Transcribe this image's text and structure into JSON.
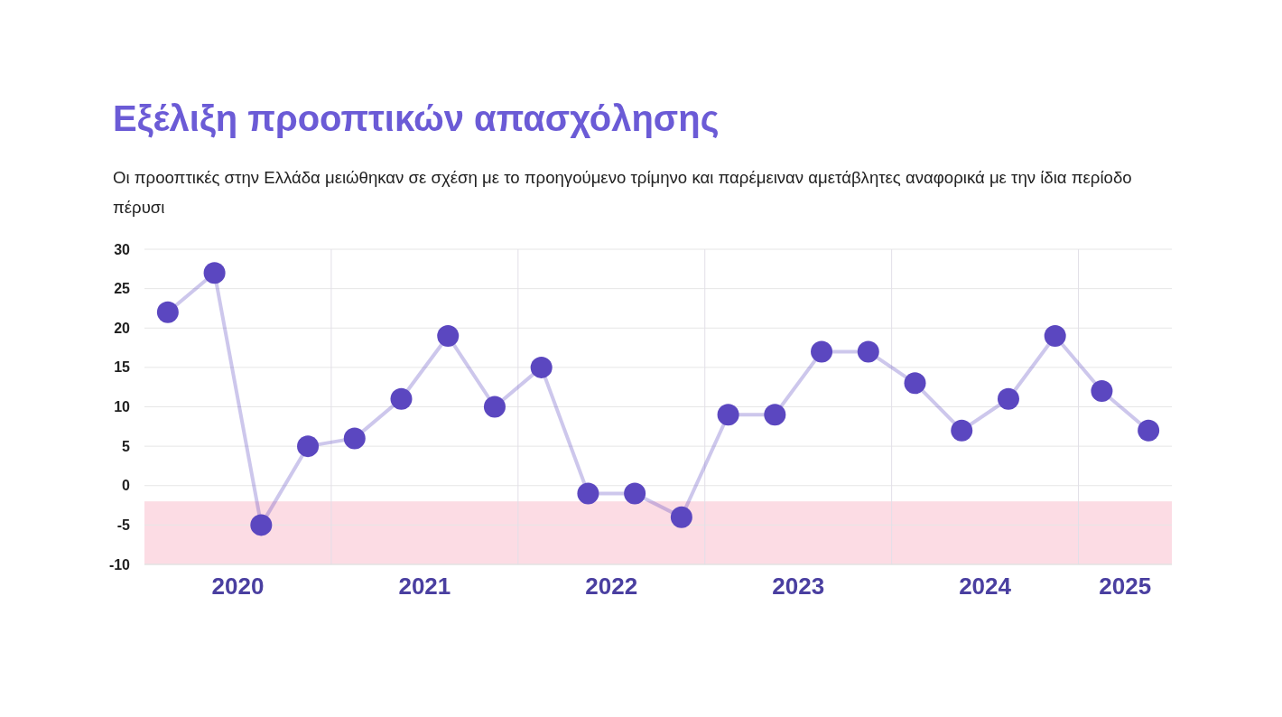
{
  "chart_data": {
    "type": "line",
    "title": "Εξέλιξη προοπτικών απασχόλησης",
    "subtitle": "Οι προοπτικές στην Ελλάδα μειώθηκαν σε σχέση με το προηγούμενο τρίμηνο και παρέμειναν αμετάβλητες αναφορικά με την ίδια περίοδο πέρυσι",
    "x": [
      2020.125,
      2020.375,
      2020.625,
      2020.875,
      2021.125,
      2021.375,
      2021.625,
      2021.875,
      2022.125,
      2022.375,
      2022.625,
      2022.875,
      2023.125,
      2023.375,
      2023.625,
      2023.875,
      2024.125,
      2024.375,
      2024.625,
      2024.875,
      2025.125,
      2025.375
    ],
    "series": [
      {
        "color": "#5b47c0",
        "values": [
          22,
          27,
          -5,
          5,
          6,
          11,
          19,
          10,
          15,
          -1,
          -1,
          -4,
          9,
          9,
          17,
          17,
          13,
          7,
          11,
          19,
          12,
          7
        ]
      }
    ],
    "xlim": [
      2020,
      2025.5
    ],
    "xticks": [
      {
        "value": 2020.5,
        "label": "2020"
      },
      {
        "value": 2021,
        "label": null
      },
      {
        "value": 2021.5,
        "label": "2021"
      },
      {
        "value": 2022,
        "label": null
      },
      {
        "value": 2022.5,
        "label": "2022"
      },
      {
        "value": 2023,
        "label": null
      },
      {
        "value": 2023.5,
        "label": "2023"
      },
      {
        "value": 2024,
        "label": null
      },
      {
        "value": 2024.5,
        "label": "2024"
      },
      {
        "value": 2025,
        "label": null
      },
      {
        "value": 2025.25,
        "label": "2025"
      }
    ],
    "ylim": [
      -10,
      30
    ],
    "yticks": [
      -10,
      -5,
      0,
      5,
      10,
      15,
      20,
      25,
      30
    ],
    "bands": [
      {
        "axis": "y",
        "from": -10,
        "to": -2,
        "color": "#fcdce4"
      }
    ],
    "grid": true,
    "marker": "circle",
    "line_style": "solid"
  }
}
